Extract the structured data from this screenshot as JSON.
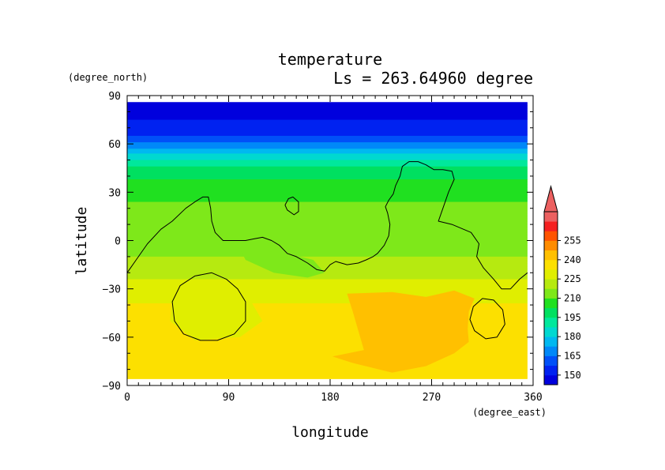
{
  "chart_data": {
    "type": "heatmap",
    "title": "temperature",
    "subtitle": "Ls = 263.64960 degree",
    "xlabel": "longitude",
    "ylabel": "latitude",
    "xunit": "(degree_east)",
    "yunit": "(degree_north)",
    "xlim": [
      0,
      360
    ],
    "ylim": [
      -90,
      90
    ],
    "xticks": [
      0,
      90,
      180,
      270,
      360
    ],
    "yticks": [
      90,
      60,
      30,
      0,
      -30,
      -60,
      -90
    ],
    "xtick_labels": [
      "0",
      "90",
      "180",
      "270",
      "360"
    ],
    "ytick_labels": [
      "90",
      "60",
      "30",
      "0",
      "−30",
      "−60",
      "−90"
    ],
    "data_lat_range": [
      -86,
      86
    ],
    "data_lon_range": [
      0,
      355
    ],
    "colorbar": {
      "levels": [
        150,
        165,
        180,
        195,
        210,
        225,
        240,
        255
      ],
      "level_labels": [
        "150",
        "165",
        "180",
        "195",
        "210",
        "225",
        "240",
        "255"
      ],
      "colors": [
        "#0000dd",
        "#0022f0",
        "#0050f8",
        "#0088f8",
        "#00b8f0",
        "#00d8d0",
        "#00e89c",
        "#00e060",
        "#20e020",
        "#7ee81a",
        "#b6ea10",
        "#e0ee00",
        "#fce000",
        "#ffc000",
        "#ff8c00",
        "#ff5400",
        "#f52020",
        "#ec6060"
      ],
      "extend": "max"
    },
    "grid": false,
    "temperature_profile": [
      {
        "lat": 86,
        "value": 148
      },
      {
        "lat": 75,
        "value": 150
      },
      {
        "lat": 66,
        "value": 156
      },
      {
        "lat": 60,
        "value": 166
      },
      {
        "lat": 54,
        "value": 180
      },
      {
        "lat": 48,
        "value": 192
      },
      {
        "lat": 42,
        "value": 200
      },
      {
        "lat": 34,
        "value": 205
      },
      {
        "lat": 24,
        "value": 210
      },
      {
        "lat": 14,
        "value": 212
      },
      {
        "lat": 4,
        "value": 214
      },
      {
        "lat": -6,
        "value": 216
      },
      {
        "lat": -16,
        "value": 220
      },
      {
        "lat": -26,
        "value": 226
      },
      {
        "lat": -40,
        "value": 233
      },
      {
        "lat": -60,
        "value": 234
      },
      {
        "lat": -86,
        "value": 233
      }
    ],
    "warm_region": {
      "value": 240,
      "points": [
        [
          195,
          -33
        ],
        [
          235,
          -32
        ],
        [
          265,
          -35
        ],
        [
          290,
          -31
        ],
        [
          308,
          -36
        ],
        [
          303,
          -44
        ],
        [
          302,
          -55
        ],
        [
          303,
          -63
        ],
        [
          290,
          -70
        ],
        [
          265,
          -78
        ],
        [
          235,
          -82
        ],
        [
          200,
          -76
        ],
        [
          182,
          -72
        ],
        [
          210,
          -68
        ],
        [
          205,
          -56
        ],
        [
          200,
          -44
        ]
      ]
    },
    "cool_patches": [
      {
        "value": 210,
        "points": [
          [
            100,
            -5
          ],
          [
            140,
            -8
          ],
          [
            165,
            -12
          ],
          [
            175,
            -20
          ],
          [
            160,
            -23
          ],
          [
            130,
            -20
          ],
          [
            105,
            -12
          ]
        ]
      },
      {
        "value": 225,
        "points": [
          [
            40,
            -35
          ],
          [
            110,
            -38
          ],
          [
            120,
            -50
          ],
          [
            100,
            -60
          ],
          [
            60,
            -62
          ],
          [
            38,
            -50
          ]
        ]
      }
    ],
    "contours": [
      [
        [
          0,
          -20
        ],
        [
          8,
          -12
        ],
        [
          18,
          -2
        ],
        [
          30,
          7
        ],
        [
          40,
          12
        ],
        [
          52,
          20
        ],
        [
          60,
          24
        ],
        [
          67,
          27
        ],
        [
          72,
          27
        ],
        [
          74,
          20
        ],
        [
          75,
          12
        ],
        [
          78,
          5
        ],
        [
          85,
          0
        ],
        [
          95,
          0
        ],
        [
          105,
          0
        ],
        [
          112,
          1
        ],
        [
          120,
          2
        ],
        [
          128,
          0
        ],
        [
          135,
          -3
        ],
        [
          142,
          -8
        ],
        [
          150,
          -10
        ],
        [
          160,
          -14
        ],
        [
          168,
          -18
        ],
        [
          175,
          -19
        ],
        [
          180,
          -15
        ],
        [
          185,
          -13
        ],
        [
          195,
          -15
        ],
        [
          205,
          -14
        ],
        [
          212,
          -12
        ],
        [
          218,
          -10
        ],
        [
          222,
          -8
        ],
        [
          228,
          -3
        ],
        [
          232,
          3
        ],
        [
          233,
          10
        ],
        [
          231,
          17
        ],
        [
          229,
          21
        ],
        [
          232,
          25
        ],
        [
          236,
          29
        ],
        [
          238,
          34
        ],
        [
          242,
          40
        ],
        [
          244,
          46
        ],
        [
          250,
          49
        ],
        [
          258,
          49
        ],
        [
          265,
          47
        ],
        [
          272,
          44
        ],
        [
          280,
          44
        ],
        [
          288,
          43
        ],
        [
          290,
          38
        ],
        [
          285,
          30
        ],
        [
          280,
          20
        ],
        [
          276,
          12
        ],
        [
          288,
          10
        ],
        [
          305,
          5
        ],
        [
          312,
          -2
        ],
        [
          310,
          -10
        ],
        [
          316,
          -17
        ],
        [
          325,
          -24
        ],
        [
          332,
          -30
        ],
        [
          340,
          -30
        ],
        [
          348,
          -24
        ],
        [
          355,
          -20
        ]
      ],
      [
        [
          140,
          22
        ],
        [
          143,
          26
        ],
        [
          147,
          27
        ],
        [
          152,
          24
        ],
        [
          152,
          18
        ],
        [
          148,
          16
        ],
        [
          142,
          19
        ],
        [
          140,
          22
        ]
      ],
      [
        [
          75,
          -20
        ],
        [
          88,
          -24
        ],
        [
          98,
          -30
        ],
        [
          105,
          -38
        ],
        [
          105,
          -50
        ],
        [
          95,
          -58
        ],
        [
          80,
          -62
        ],
        [
          65,
          -62
        ],
        [
          50,
          -58
        ],
        [
          42,
          -50
        ],
        [
          40,
          -38
        ],
        [
          47,
          -28
        ],
        [
          60,
          -22
        ],
        [
          75,
          -20
        ]
      ],
      [
        [
          315,
          -36
        ],
        [
          325,
          -37
        ],
        [
          333,
          -43
        ],
        [
          335,
          -52
        ],
        [
          328,
          -60
        ],
        [
          318,
          -61
        ],
        [
          308,
          -56
        ],
        [
          304,
          -49
        ],
        [
          307,
          -41
        ],
        [
          315,
          -36
        ]
      ]
    ]
  }
}
